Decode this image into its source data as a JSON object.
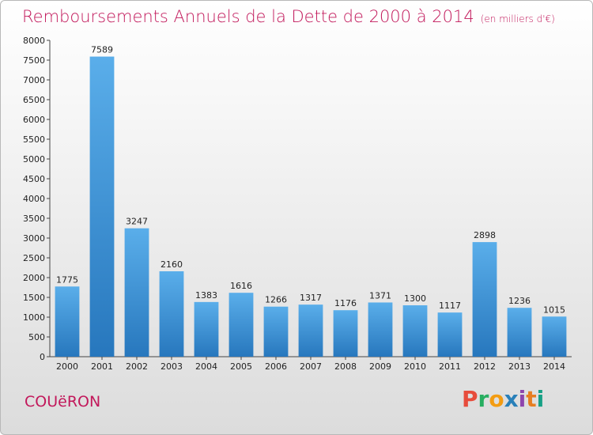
{
  "title": "Remboursements Annuels de la Dette de 2000 à 2014",
  "subtitle": "(en milliers d'€)",
  "commune": "COUëRON",
  "logo": {
    "letters": [
      "P",
      "r",
      "o",
      "x",
      "i",
      "t",
      "i"
    ],
    "colors": [
      "#e74c3c",
      "#27ae60",
      "#f39c12",
      "#2980b9",
      "#8e44ad",
      "#e67e22",
      "#16a085"
    ]
  },
  "colors": {
    "bar": "#4a9fe0",
    "bar_dark": "#2b7cc4",
    "title": "#c2185b"
  },
  "chart_data": {
    "type": "bar",
    "categories": [
      "2000",
      "2001",
      "2002",
      "2003",
      "2004",
      "2005",
      "2006",
      "2007",
      "2008",
      "2009",
      "2010",
      "2011",
      "2012",
      "2013",
      "2014"
    ],
    "values": [
      1775,
      7589,
      3247,
      2160,
      1383,
      1616,
      1266,
      1317,
      1176,
      1371,
      1300,
      1117,
      2898,
      1236,
      1015
    ],
    "title": "Remboursements Annuels de la Dette de 2000 à 2014",
    "ylim": [
      0,
      8000
    ],
    "yticks": [
      0,
      500,
      1000,
      1500,
      2000,
      2500,
      3000,
      3500,
      4000,
      4500,
      5000,
      5500,
      6000,
      6500,
      7000,
      7500,
      8000
    ],
    "grid": false,
    "legend": "none"
  }
}
